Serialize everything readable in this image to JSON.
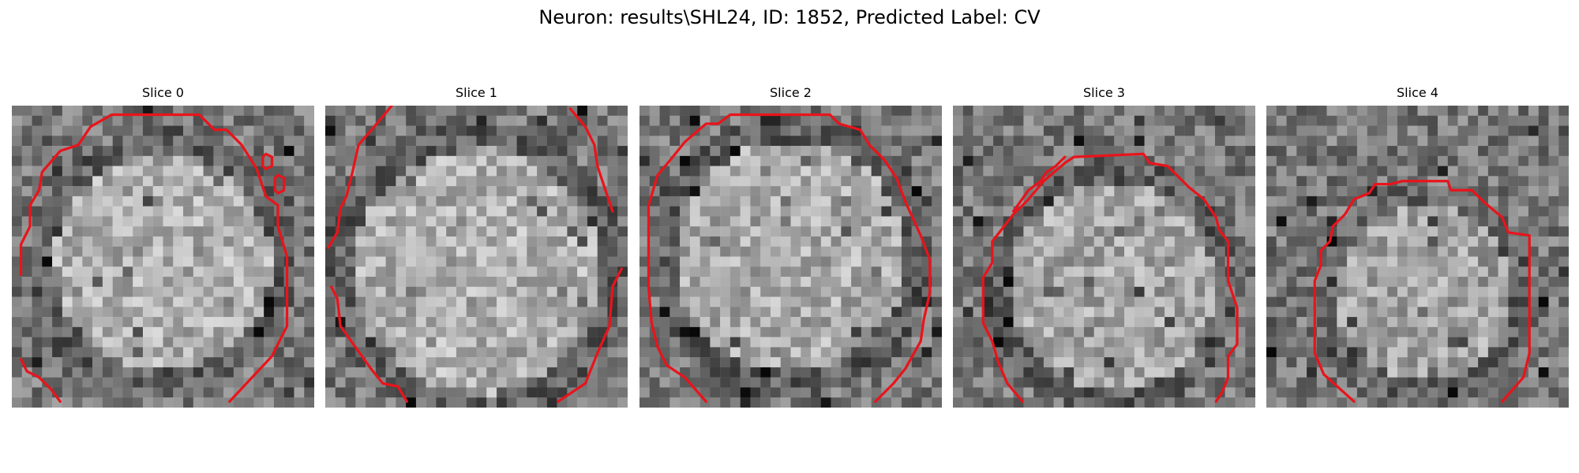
{
  "figure": {
    "title": "Neuron: results\\SHL24, ID: 1852, Predicted Label: CV"
  },
  "panels": [
    {
      "title": "Slice 0"
    },
    {
      "title": "Slice 1"
    },
    {
      "title": "Slice 2"
    },
    {
      "title": "Slice 3"
    },
    {
      "title": "Slice 4"
    }
  ],
  "style": {
    "contour_color": "#e8141c",
    "colormap": "grayscale"
  }
}
